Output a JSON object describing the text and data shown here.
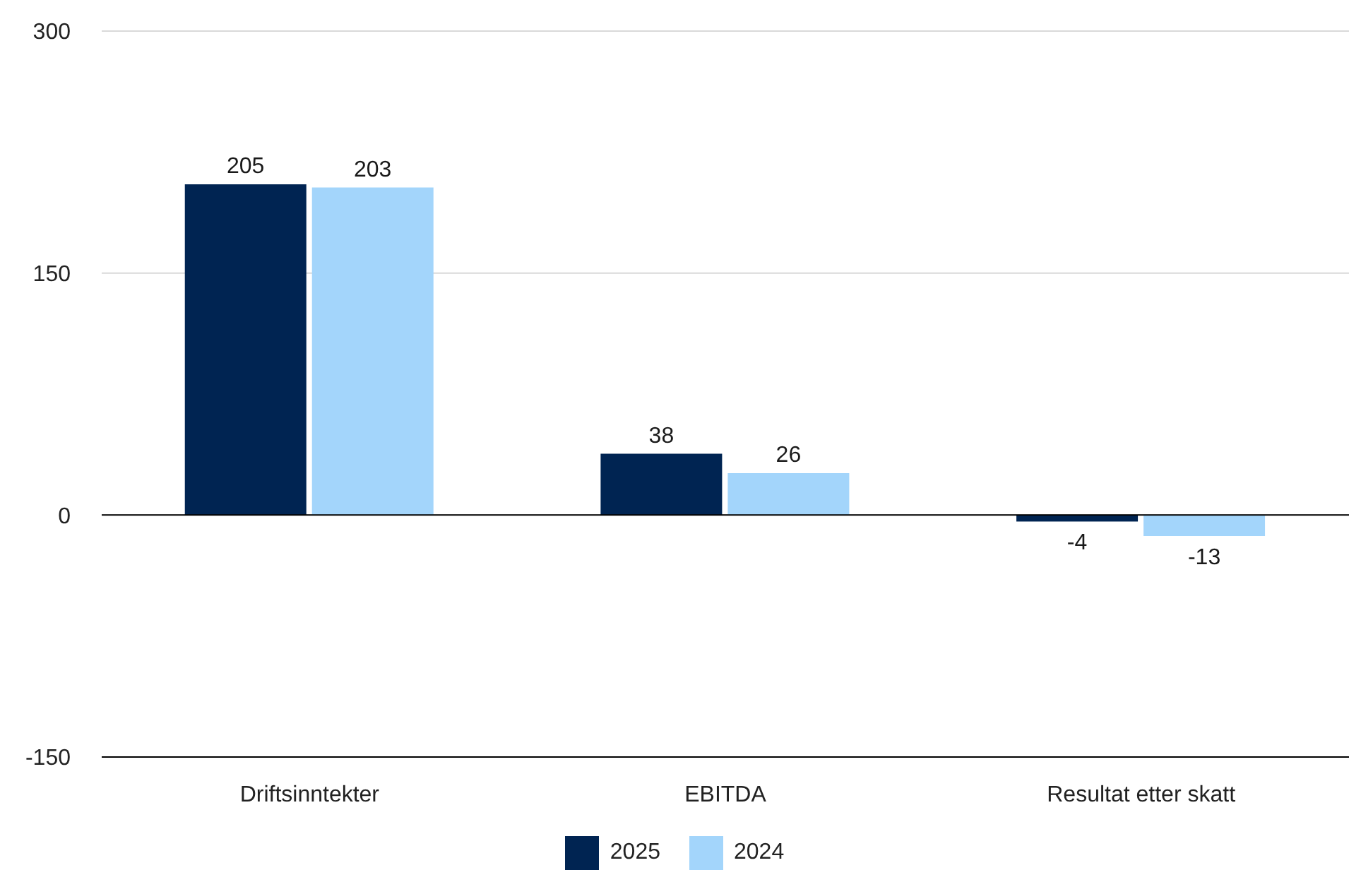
{
  "chart_data": {
    "type": "bar",
    "categories": [
      "Driftsinntekter",
      "EBITDA",
      "Resultat etter skatt"
    ],
    "series": [
      {
        "name": "2025",
        "color": "#002452",
        "values": [
          205,
          38,
          -4
        ]
      },
      {
        "name": "2024",
        "color": "#a3d5fb",
        "values": [
          203,
          26,
          -13
        ]
      }
    ],
    "ylim": [
      -150,
      300
    ],
    "yticks": [
      -150,
      0,
      150,
      300
    ],
    "grid": "y",
    "legend": "bottom",
    "data_labels": true,
    "ref_lines": [
      {
        "axis": "y",
        "value": 0,
        "color": "#000000"
      }
    ]
  }
}
